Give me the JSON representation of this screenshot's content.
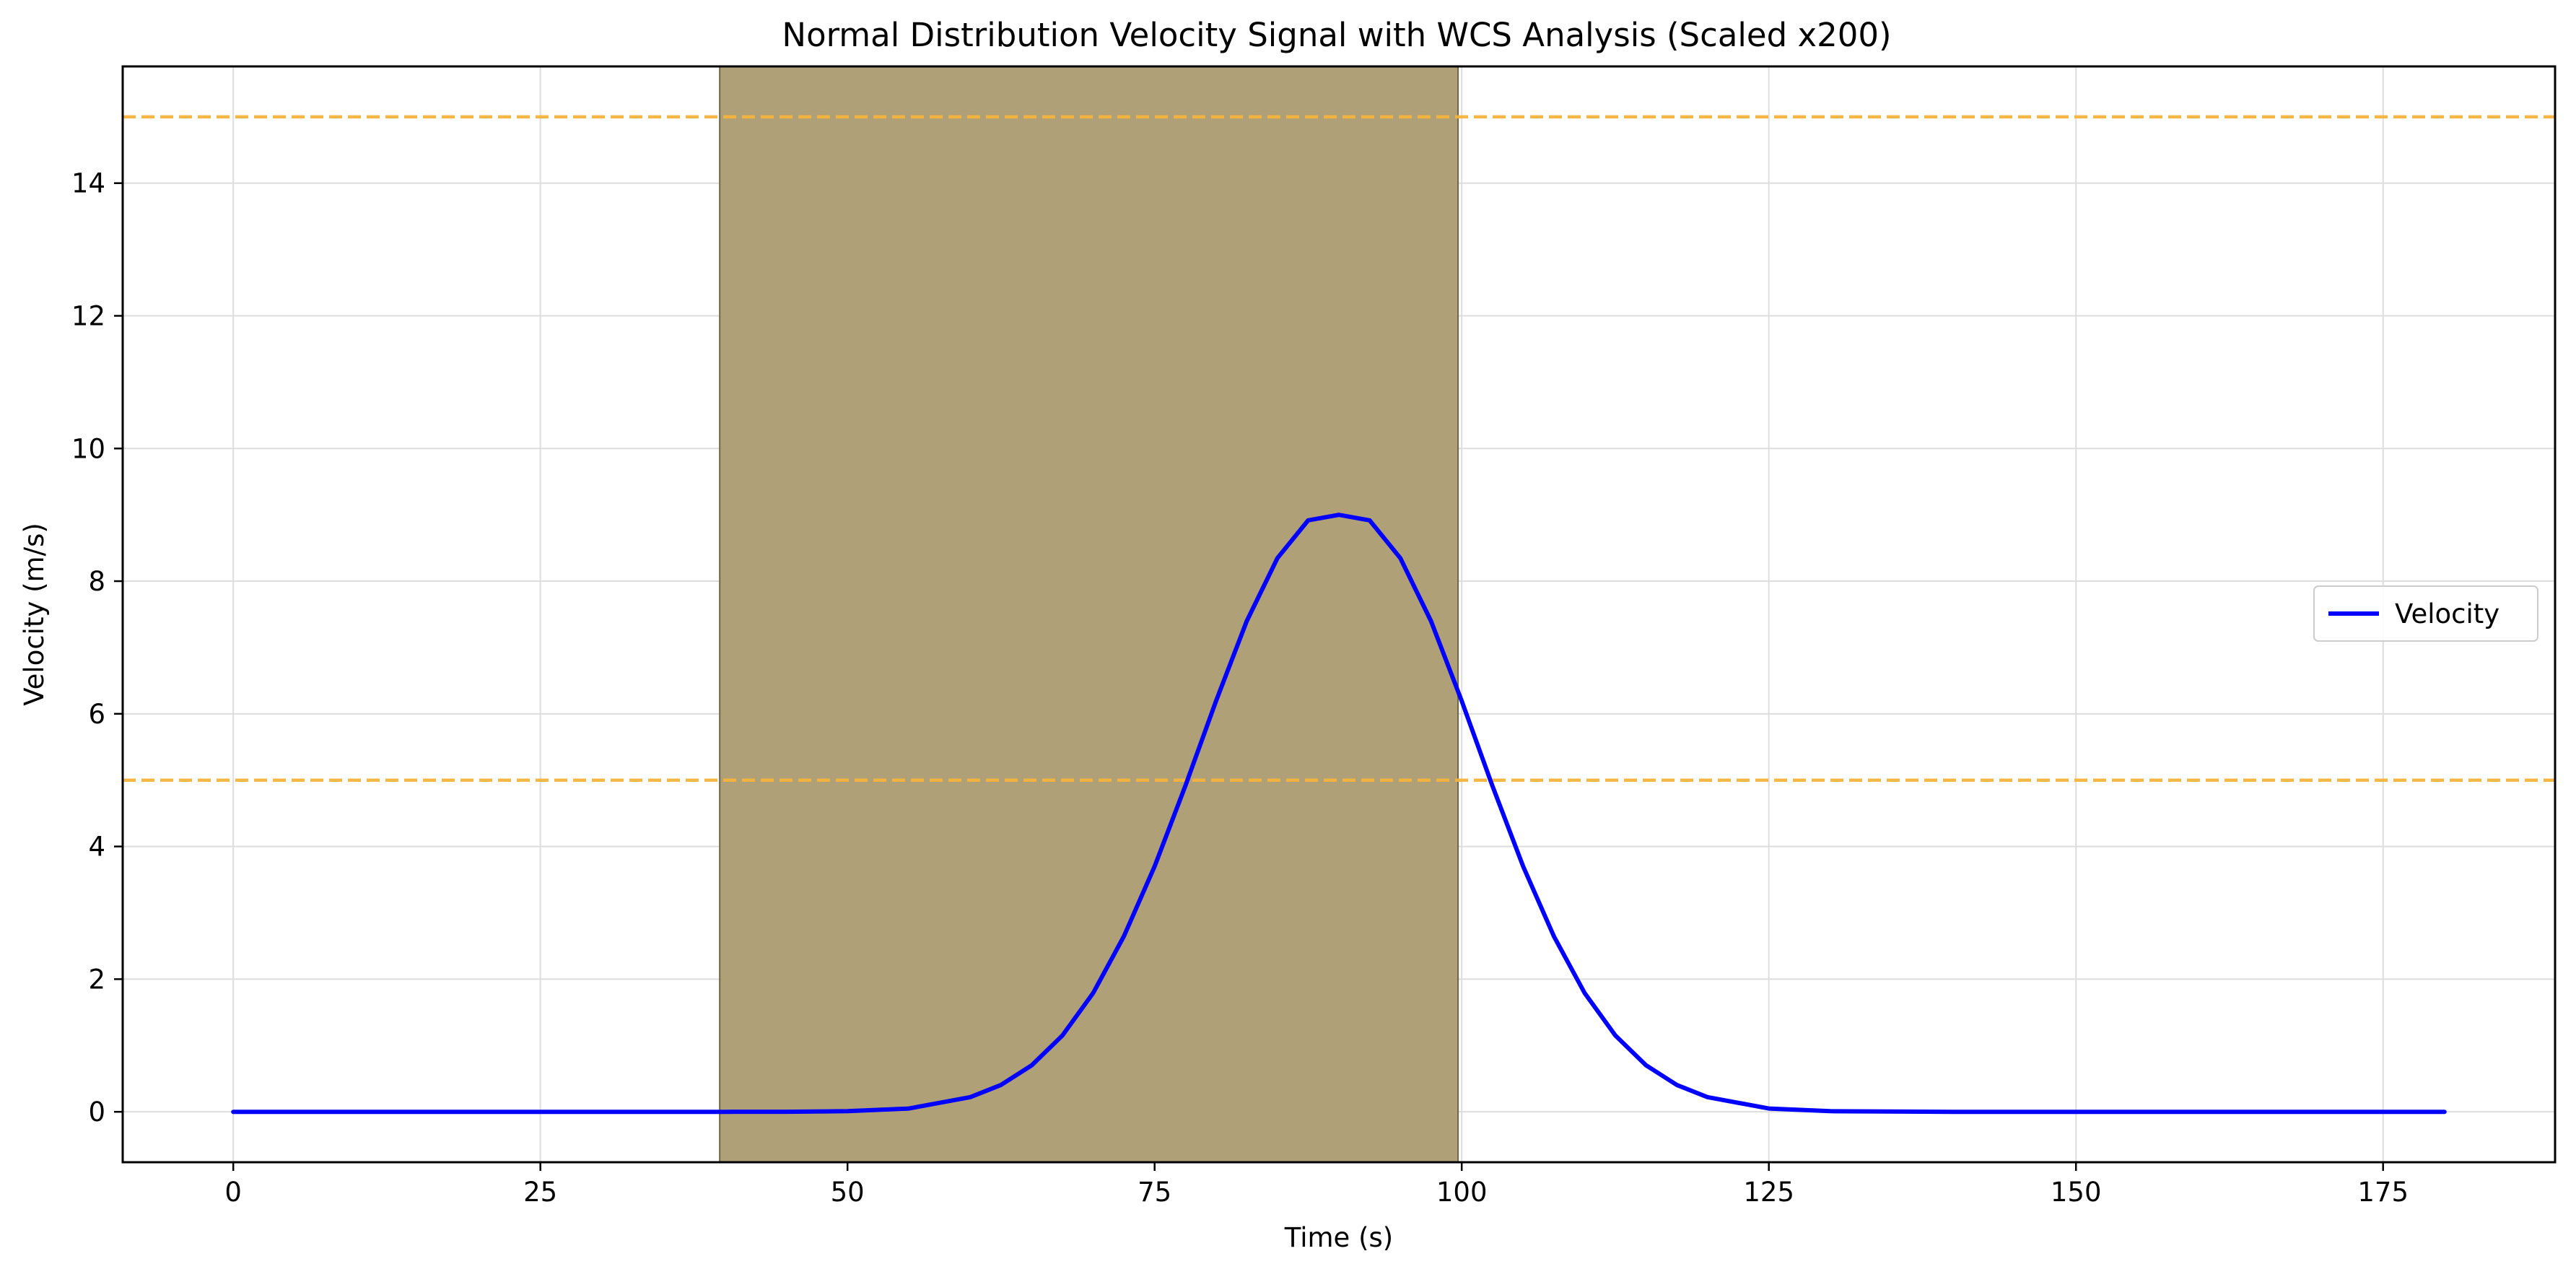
{
  "chart_data": {
    "type": "line",
    "title": "Normal Distribution Velocity Signal with WCS Analysis (Scaled x200)",
    "xlabel": "Time (s)",
    "ylabel": "Velocity (m/s)",
    "xlim": [
      -9,
      189
    ],
    "ylim": [
      -0.76,
      15.76
    ],
    "xticks": [
      0,
      25,
      50,
      75,
      100,
      125,
      150,
      175
    ],
    "yticks": [
      0,
      2,
      4,
      6,
      8,
      10,
      12,
      14
    ],
    "grid": true,
    "legend": {
      "placement": "center-right",
      "entries": [
        "Velocity"
      ]
    },
    "shaded_region": {
      "x_start": 39.6,
      "x_end": 99.7,
      "color": "#B0A078"
    },
    "reference_lines": [
      {
        "y": 15,
        "color": "#F5B43C",
        "style": "dashed"
      },
      {
        "y": 5,
        "color": "#F5B43C",
        "style": "dashed"
      }
    ],
    "series": [
      {
        "name": "Velocity",
        "color": "#0000FF",
        "x": [
          0,
          10,
          20,
          30,
          40,
          45,
          50,
          55,
          60,
          62.5,
          65,
          67.5,
          70,
          72.5,
          75,
          77.5,
          80,
          82.5,
          85,
          87.5,
          90,
          92.5,
          95,
          97.5,
          100,
          102.5,
          105,
          107.5,
          110,
          112.5,
          115,
          117.5,
          120,
          125,
          130,
          140,
          150,
          160,
          170,
          180
        ],
        "y": [
          0,
          0,
          0,
          0,
          0,
          0.001,
          0.009,
          0.05,
          0.222,
          0.405,
          0.702,
          1.151,
          1.792,
          2.645,
          3.7,
          4.911,
          6.193,
          7.397,
          8.348,
          8.917,
          9.0,
          8.917,
          8.348,
          7.397,
          6.193,
          4.911,
          3.7,
          2.645,
          1.792,
          1.151,
          0.702,
          0.405,
          0.222,
          0.05,
          0.009,
          0,
          0,
          0,
          0,
          0
        ]
      }
    ]
  }
}
